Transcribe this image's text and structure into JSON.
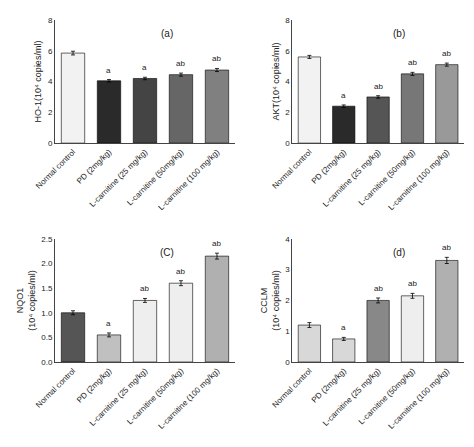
{
  "chart_data": [
    {
      "type": "bar",
      "title": "(a)",
      "y_label": "HO-1(10⁴ copies/ml)",
      "categories": [
        "Normal control",
        "PD (2mg/kg)",
        "L-carnitine (25 mg/kg)",
        "L-carnitine (50mg/kg)",
        "L-carnitine (100 mg/kg)"
      ],
      "values": [
        5.85,
        4.05,
        4.2,
        4.45,
        4.75
      ],
      "errors": [
        0.12,
        0.08,
        0.08,
        0.1,
        0.1
      ],
      "annotations": [
        null,
        "a",
        "a",
        "ab",
        "ab"
      ],
      "colors": [
        "#f2f2f2",
        "#2a2a2a",
        "#444444",
        "#666666",
        "#808080"
      ],
      "ylim": [
        0,
        8
      ],
      "yticks": [
        0,
        2,
        4,
        6,
        8
      ],
      "grid": false
    },
    {
      "type": "bar",
      "title": "(b)",
      "y_label": "AKT(10⁴ copies/ml)",
      "categories": [
        "Normal control",
        "PD (2mg/kg)",
        "L-carnitine (25 mg/kg)",
        "L-carnitine (50mg/kg)",
        "L-carnitine (100 mg/kg)"
      ],
      "values": [
        5.6,
        2.4,
        3.0,
        4.5,
        5.1
      ],
      "errors": [
        0.1,
        0.08,
        0.08,
        0.1,
        0.1
      ],
      "annotations": [
        null,
        "a",
        "ab",
        "ab",
        "ab"
      ],
      "colors": [
        "#f2f2f2",
        "#2a2a2a",
        "#555555",
        "#777777",
        "#999999"
      ],
      "ylim": [
        0,
        8
      ],
      "yticks": [
        0,
        2,
        4,
        6,
        8
      ],
      "grid": false
    },
    {
      "type": "bar",
      "title": "(C)",
      "y_label": "NQO1\n(10⁴ copies/ml)",
      "categories": [
        "Normal control",
        "PD (2mg/kg)",
        "L-carnitine (25 mg/kg)",
        "L-carnitine (50mg/kg)",
        "L-carnitine (100 mg/kg)"
      ],
      "values": [
        1.0,
        0.55,
        1.25,
        1.6,
        2.15
      ],
      "errors": [
        0.04,
        0.04,
        0.04,
        0.05,
        0.06
      ],
      "annotations": [
        null,
        "a",
        "ab",
        "ab",
        "ab"
      ],
      "colors": [
        "#555555",
        "#c0c0c0",
        "#eeeeee",
        "#eeeeee",
        "#b0b0b0"
      ],
      "ylim": [
        0,
        2.5
      ],
      "yticks": [
        {
          "value": 0.0,
          "label": "0.0"
        },
        0.5,
        {
          "value": 1.0,
          "label": "1.0"
        },
        1.5,
        {
          "value": 2.0,
          "label": "2.0"
        },
        2.5
      ],
      "grid": false
    },
    {
      "type": "bar",
      "title": "(d)",
      "y_label": "CCLM\n(10⁴ copies/ml)",
      "categories": [
        "Normal control",
        "PD (2mg/kg)",
        "L-carnitine (25 mg/kg)",
        "L-carnitine (50mg/kg)",
        "L-carnitine (100 mg/kg)"
      ],
      "values": [
        1.2,
        0.75,
        2.0,
        2.15,
        3.3
      ],
      "errors": [
        0.08,
        0.05,
        0.08,
        0.08,
        0.1
      ],
      "annotations": [
        null,
        "a",
        "ab",
        "ab",
        "ab"
      ],
      "colors": [
        "#d8d8d8",
        "#d8d8d8",
        "#888888",
        "#eeeeee",
        "#b0b0b0"
      ],
      "ylim": [
        0,
        4
      ],
      "yticks": [
        0,
        1,
        2,
        3,
        4
      ],
      "grid": false
    }
  ]
}
